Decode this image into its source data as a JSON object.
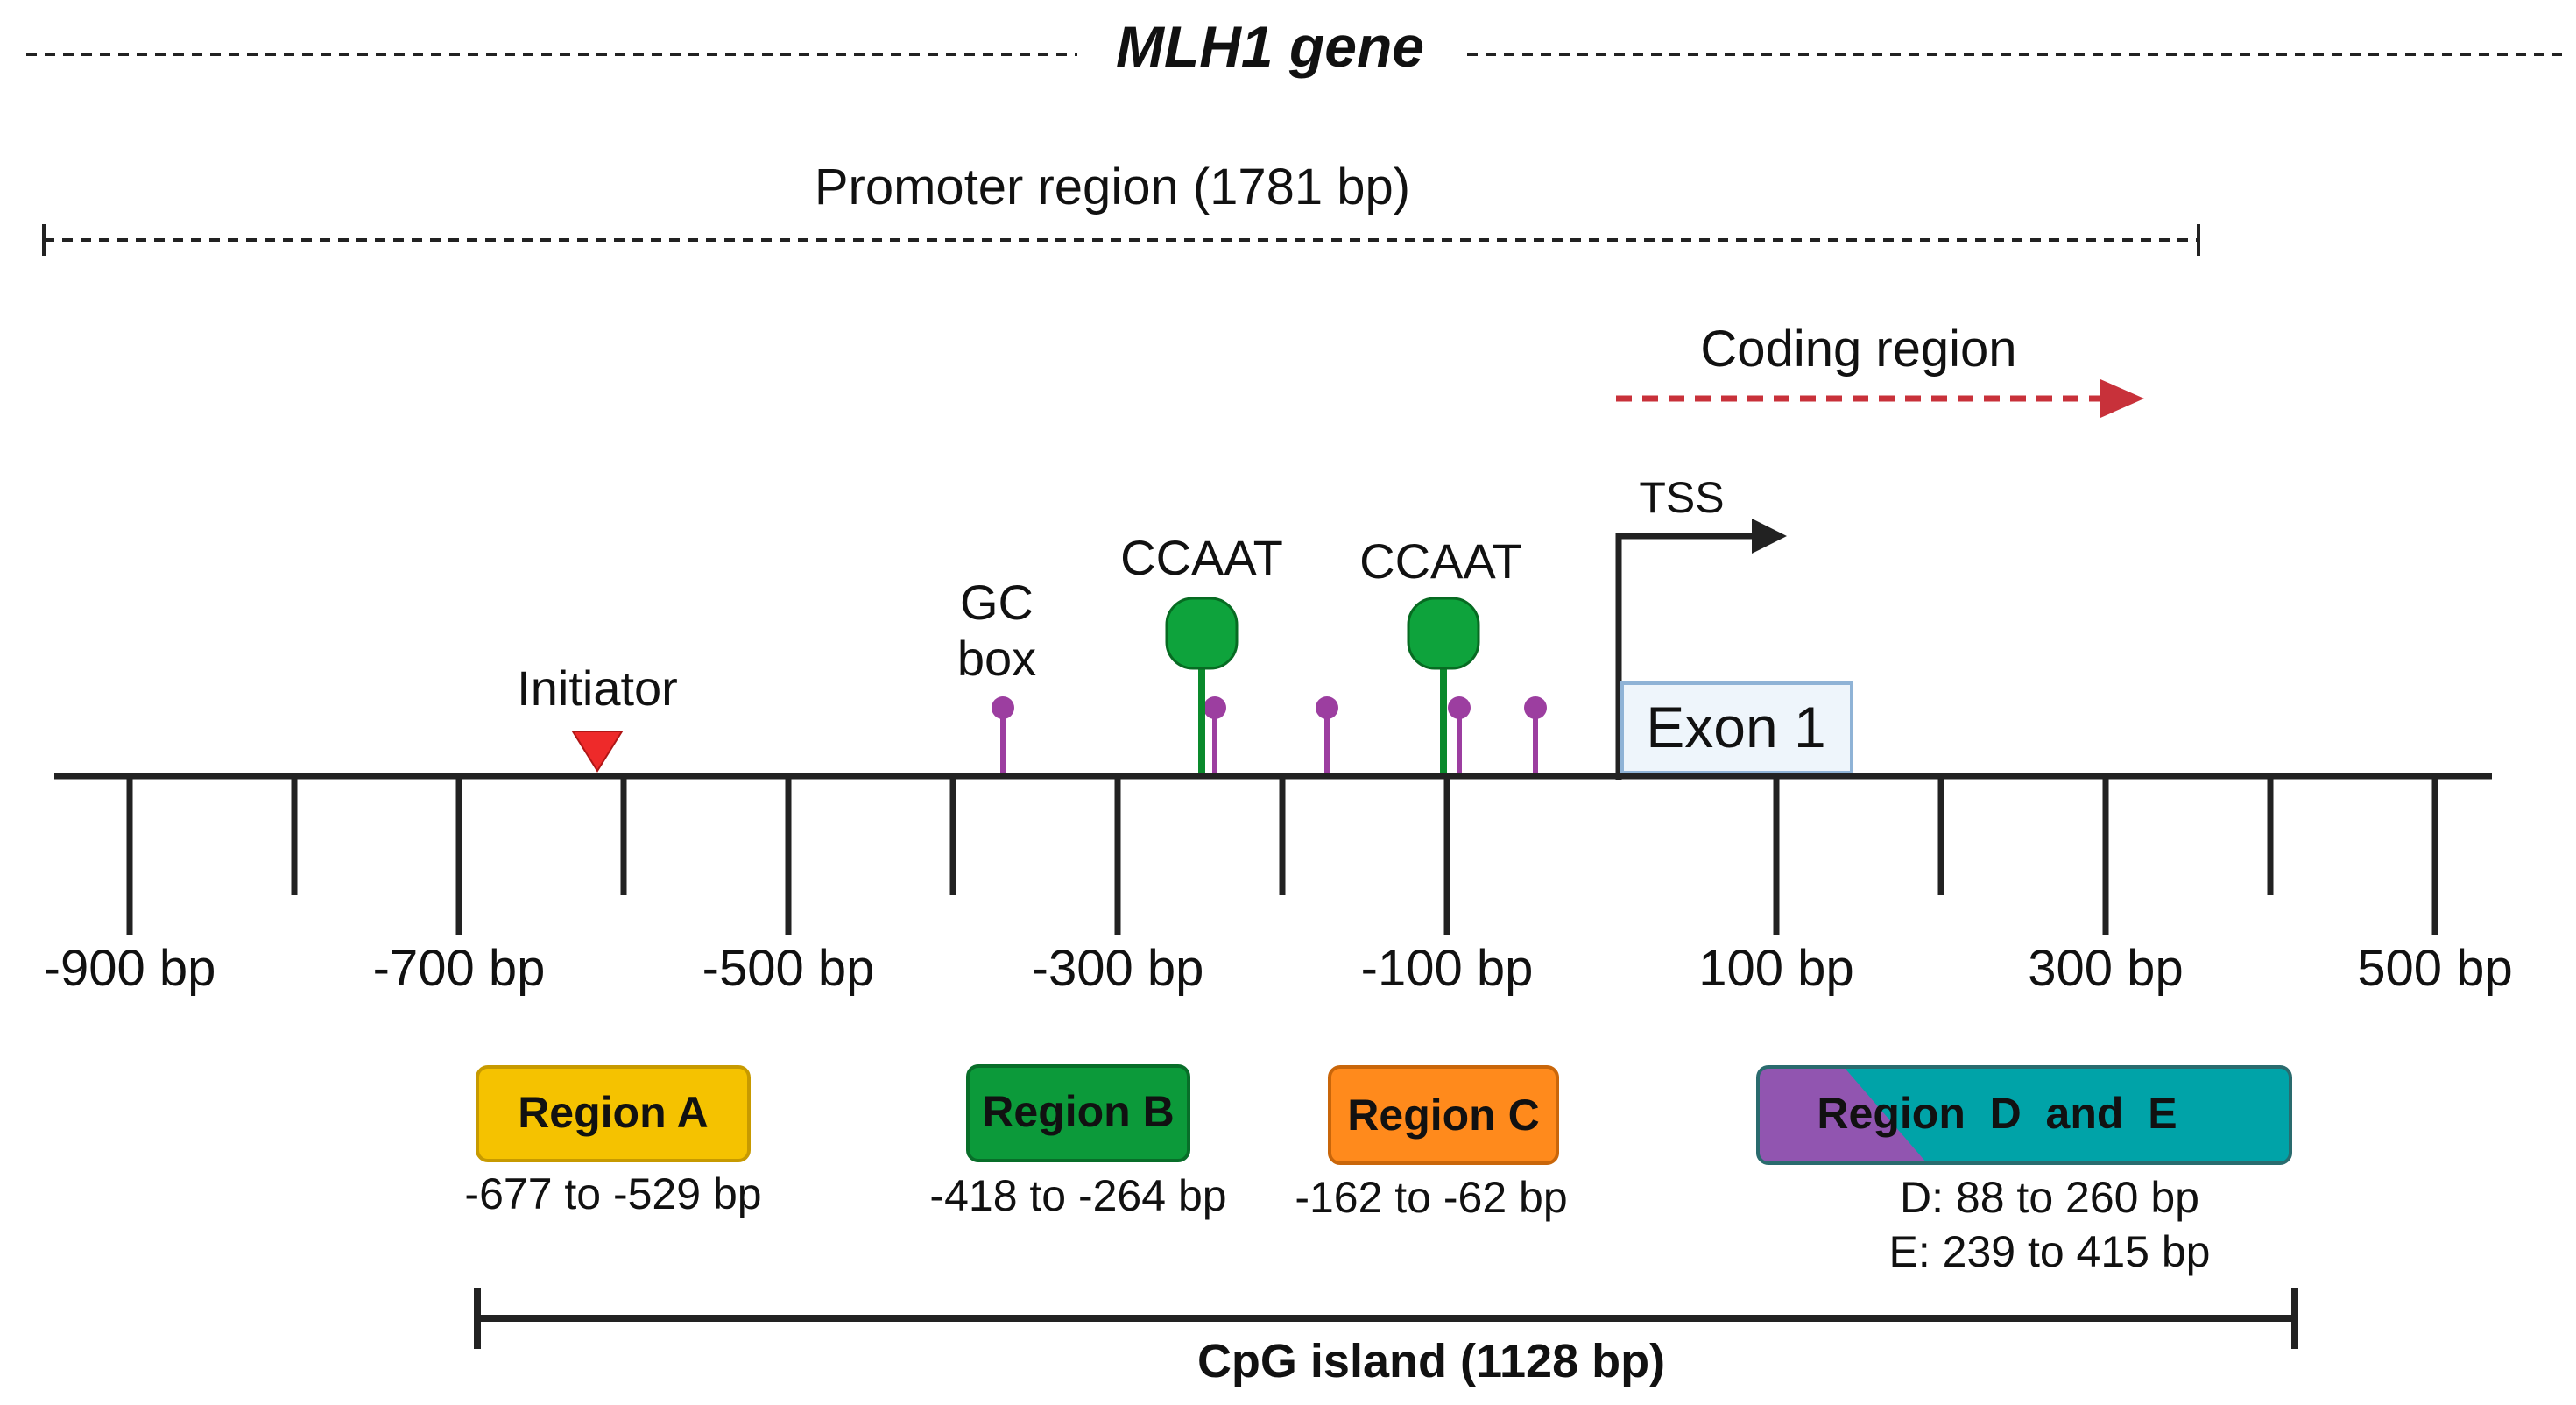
{
  "title": "MLH1 gene",
  "promoter": {
    "label": "Promoter region (1781 bp)"
  },
  "coding": {
    "label": "Coding region",
    "arrow_color": "#c8313a"
  },
  "tss": {
    "label": "TSS"
  },
  "exon": {
    "label": "Exon 1"
  },
  "features": {
    "initiator": "Initiator",
    "gc_box_line1": "GC",
    "gc_box_line2": "box",
    "ccaat_1": "CCAAT",
    "ccaat_2": "CCAAT"
  },
  "axis": {
    "ticks": [
      -900,
      -800,
      -700,
      -600,
      -500,
      -400,
      -300,
      -200,
      -100,
      0,
      100,
      200,
      300,
      400,
      500
    ],
    "labels": [
      "-900 bp",
      "-700 bp",
      "-500 bp",
      "-300 bp",
      "-100 bp",
      "100 bp",
      "300 bp",
      "500 bp"
    ]
  },
  "regions": [
    {
      "name": "Region A",
      "range": "-677 to -529 bp",
      "color": "#f5c200",
      "border": "#c79a00"
    },
    {
      "name": "Region B",
      "range": "-418 to -264 bp",
      "color": "#0c9a3a",
      "border": "#086e29"
    },
    {
      "name": "Region C",
      "range": "-162 to -62 bp",
      "color": "#ff8a1c",
      "border": "#c9660a"
    }
  ],
  "region_de": {
    "name": "Region  D  and  E",
    "range_d": "D: 88 to 260 bp",
    "range_e": "E: 239 to 415 bp",
    "color_d": "#9155b0",
    "color_e": "#00a3a8"
  },
  "cpg": {
    "label": "CpG island (1128 bp)"
  },
  "colors": {
    "line": "#222222",
    "purple": "#9c3ea0",
    "green": "#0a8a2c",
    "green_fill": "#0ea33c",
    "red": "#ee2a2a",
    "exon_border": "#8fb3d6",
    "exon_fill": "#eef5fb"
  }
}
